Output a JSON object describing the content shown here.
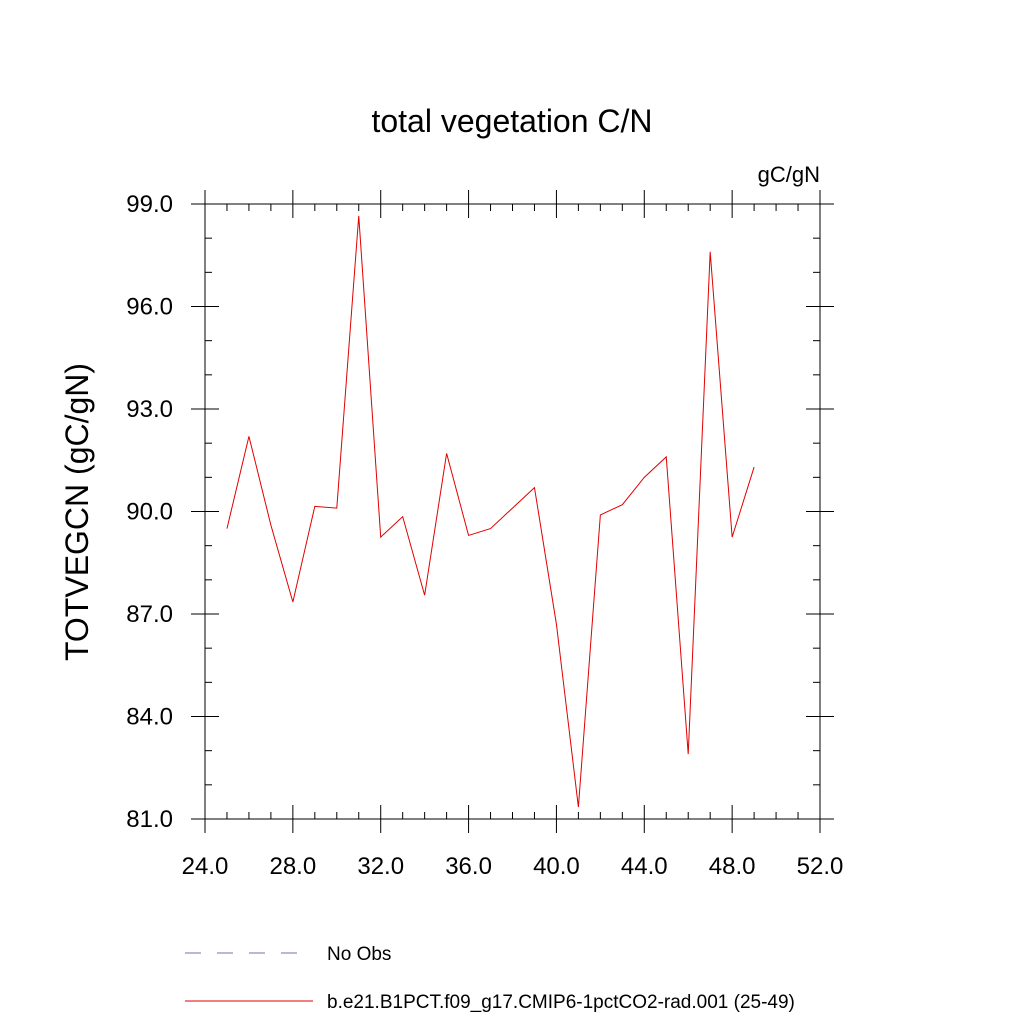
{
  "chart_data": {
    "type": "line",
    "title": "total vegetation C/N",
    "units_label": "gC/gN",
    "ylabel": "TOTVEGCN  (gC/gN)",
    "xlabel": "",
    "xlim": [
      24.0,
      52.0
    ],
    "ylim": [
      81.0,
      99.0
    ],
    "x_ticks": [
      "24.0",
      "28.0",
      "32.0",
      "36.0",
      "40.0",
      "44.0",
      "48.0",
      "52.0"
    ],
    "y_ticks": [
      "81.0",
      "84.0",
      "87.0",
      "90.0",
      "93.0",
      "96.0",
      "99.0"
    ],
    "grid": false,
    "legend_position": "bottom",
    "series": [
      {
        "name": "b.e21.B1PCT.f09_g17.CMIP6-1pctCO2-rad.001 (25-49)",
        "color": "#e00000",
        "style": "solid",
        "x": [
          25,
          26,
          27,
          28,
          29,
          30,
          31,
          32,
          33,
          34,
          35,
          36,
          37,
          38,
          39,
          40,
          41,
          42,
          43,
          44,
          45,
          46,
          47,
          48,
          49
        ],
        "y": [
          89.5,
          92.2,
          89.6,
          87.35,
          90.15,
          90.1,
          98.65,
          89.25,
          89.85,
          87.55,
          91.7,
          89.3,
          89.5,
          90.1,
          90.7,
          86.7,
          81.35,
          89.9,
          90.2,
          91.0,
          91.6,
          82.9,
          97.6,
          89.25,
          91.3
        ]
      }
    ],
    "legend": [
      {
        "label": "No Obs",
        "color": "#7a6fb0",
        "style": "dashed"
      },
      {
        "label": "b.e21.B1PCT.f09_g17.CMIP6-1pctCO2-rad.001 (25-49)",
        "color": "#e00000",
        "style": "solid"
      }
    ]
  }
}
